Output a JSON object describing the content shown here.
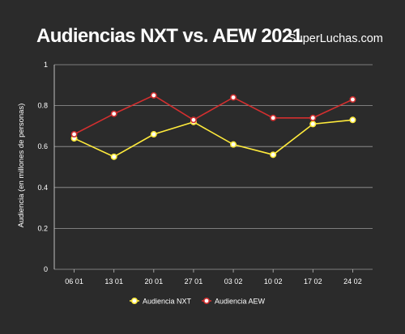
{
  "header": {
    "title": "Audiencias NXT vs. AEW 2021",
    "brand": "SuperLuchas.com"
  },
  "chart_data": {
    "type": "line",
    "title": "Audiencias NXT vs. AEW 2021",
    "xlabel": "",
    "ylabel": "Audiencia (en millones de personas)",
    "categories": [
      "06 01",
      "13 01",
      "20 01",
      "27 01",
      "03 02",
      "10 02",
      "17 02",
      "24 02"
    ],
    "ylim": [
      0,
      1
    ],
    "yticks": [
      "0",
      "0.2",
      "0.4",
      "0.6",
      "0.8",
      "1"
    ],
    "grid": true,
    "legend_position": "bottom",
    "series": [
      {
        "name": "Audiencia NXT",
        "color": "#ffeb3b",
        "values": [
          0.64,
          0.55,
          0.66,
          0.72,
          0.61,
          0.56,
          0.71,
          0.73
        ]
      },
      {
        "name": "Audiencia AEW",
        "color": "#d32f2f",
        "values": [
          0.66,
          0.76,
          0.85,
          0.73,
          0.84,
          0.74,
          0.74,
          0.83
        ]
      }
    ]
  }
}
